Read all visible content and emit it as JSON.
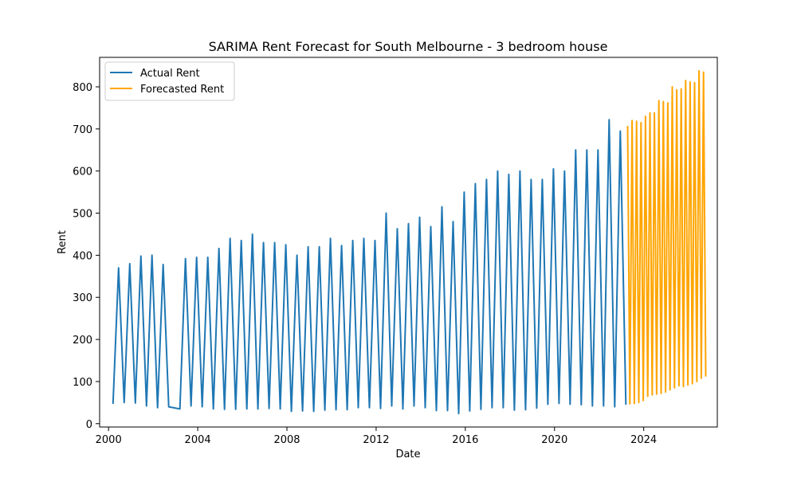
{
  "chart_data": {
    "type": "line",
    "title": "SARIMA Rent Forecast for South Melbourne - 3 bedroom house",
    "xlabel": "Date",
    "ylabel": "Rent",
    "xlim": [
      1999.6,
      2027.3
    ],
    "ylim": [
      -8,
      870
    ],
    "x_ticks": [
      2000,
      2004,
      2008,
      2012,
      2016,
      2020,
      2024
    ],
    "y_ticks": [
      0,
      100,
      200,
      300,
      400,
      500,
      600,
      700,
      800
    ],
    "grid": false,
    "legend_position": "top-left",
    "series": [
      {
        "name": "Actual Rent",
        "color": "#1f77b4",
        "points": [
          [
            2000.2,
            47
          ],
          [
            2000.45,
            370
          ],
          [
            2000.7,
            50
          ],
          [
            2000.95,
            380
          ],
          [
            2001.2,
            49
          ],
          [
            2001.45,
            398
          ],
          [
            2001.7,
            42
          ],
          [
            2001.95,
            400
          ],
          [
            2002.2,
            38
          ],
          [
            2002.45,
            378
          ],
          [
            2002.7,
            40
          ],
          [
            2003.2,
            35
          ],
          [
            2003.45,
            392
          ],
          [
            2003.7,
            42
          ],
          [
            2003.95,
            395
          ],
          [
            2004.2,
            40
          ],
          [
            2004.45,
            395
          ],
          [
            2004.7,
            35
          ],
          [
            2004.95,
            416
          ],
          [
            2005.2,
            34
          ],
          [
            2005.45,
            440
          ],
          [
            2005.7,
            34
          ],
          [
            2005.95,
            435
          ],
          [
            2006.2,
            35
          ],
          [
            2006.45,
            450
          ],
          [
            2006.7,
            35
          ],
          [
            2006.95,
            430
          ],
          [
            2007.2,
            36
          ],
          [
            2007.45,
            430
          ],
          [
            2007.7,
            35
          ],
          [
            2007.95,
            425
          ],
          [
            2008.2,
            29
          ],
          [
            2008.45,
            400
          ],
          [
            2008.7,
            30
          ],
          [
            2008.95,
            420
          ],
          [
            2009.2,
            29
          ],
          [
            2009.45,
            420
          ],
          [
            2009.7,
            32
          ],
          [
            2009.95,
            440
          ],
          [
            2010.2,
            33
          ],
          [
            2010.45,
            423
          ],
          [
            2010.7,
            33
          ],
          [
            2010.95,
            435
          ],
          [
            2011.2,
            38
          ],
          [
            2011.45,
            440
          ],
          [
            2011.7,
            38
          ],
          [
            2011.95,
            435
          ],
          [
            2012.2,
            36
          ],
          [
            2012.45,
            500
          ],
          [
            2012.7,
            42
          ],
          [
            2012.95,
            463
          ],
          [
            2013.2,
            35
          ],
          [
            2013.45,
            475
          ],
          [
            2013.7,
            42
          ],
          [
            2013.95,
            490
          ],
          [
            2014.2,
            38
          ],
          [
            2014.45,
            468
          ],
          [
            2014.7,
            31
          ],
          [
            2014.95,
            515
          ],
          [
            2015.2,
            31
          ],
          [
            2015.45,
            480
          ],
          [
            2015.7,
            24
          ],
          [
            2015.95,
            550
          ],
          [
            2016.2,
            30
          ],
          [
            2016.45,
            570
          ],
          [
            2016.7,
            34
          ],
          [
            2016.95,
            580
          ],
          [
            2017.2,
            38
          ],
          [
            2017.45,
            600
          ],
          [
            2017.7,
            38
          ],
          [
            2017.95,
            592
          ],
          [
            2018.2,
            32
          ],
          [
            2018.45,
            600
          ],
          [
            2018.7,
            33
          ],
          [
            2018.95,
            580
          ],
          [
            2019.2,
            37
          ],
          [
            2019.45,
            580
          ],
          [
            2019.7,
            46
          ],
          [
            2019.95,
            605
          ],
          [
            2020.2,
            48
          ],
          [
            2020.45,
            600
          ],
          [
            2020.7,
            46
          ],
          [
            2020.95,
            650
          ],
          [
            2021.2,
            45
          ],
          [
            2021.45,
            650
          ],
          [
            2021.7,
            42
          ],
          [
            2021.95,
            650
          ],
          [
            2022.2,
            42
          ],
          [
            2022.45,
            722
          ],
          [
            2022.7,
            40
          ],
          [
            2022.95,
            695
          ],
          [
            2023.2,
            45
          ]
        ]
      },
      {
        "name": "Forecasted Rent",
        "color": "#ffa500",
        "points": [
          [
            2023.28,
            707
          ],
          [
            2023.38,
            47
          ],
          [
            2023.48,
            720
          ],
          [
            2023.58,
            48
          ],
          [
            2023.68,
            718
          ],
          [
            2023.78,
            50
          ],
          [
            2023.88,
            715
          ],
          [
            2023.98,
            55
          ],
          [
            2024.08,
            730
          ],
          [
            2024.18,
            65
          ],
          [
            2024.28,
            738
          ],
          [
            2024.38,
            68
          ],
          [
            2024.48,
            738
          ],
          [
            2024.58,
            70
          ],
          [
            2024.68,
            767
          ],
          [
            2024.78,
            72
          ],
          [
            2024.88,
            765
          ],
          [
            2024.98,
            75
          ],
          [
            2025.08,
            762
          ],
          [
            2025.18,
            80
          ],
          [
            2025.28,
            800
          ],
          [
            2025.38,
            85
          ],
          [
            2025.48,
            793
          ],
          [
            2025.58,
            90
          ],
          [
            2025.68,
            795
          ],
          [
            2025.78,
            88
          ],
          [
            2025.88,
            815
          ],
          [
            2025.98,
            92
          ],
          [
            2026.08,
            812
          ],
          [
            2026.18,
            95
          ],
          [
            2026.28,
            810
          ],
          [
            2026.38,
            100
          ],
          [
            2026.48,
            838
          ],
          [
            2026.58,
            108
          ],
          [
            2026.68,
            835
          ],
          [
            2026.78,
            112
          ]
        ]
      }
    ]
  }
}
